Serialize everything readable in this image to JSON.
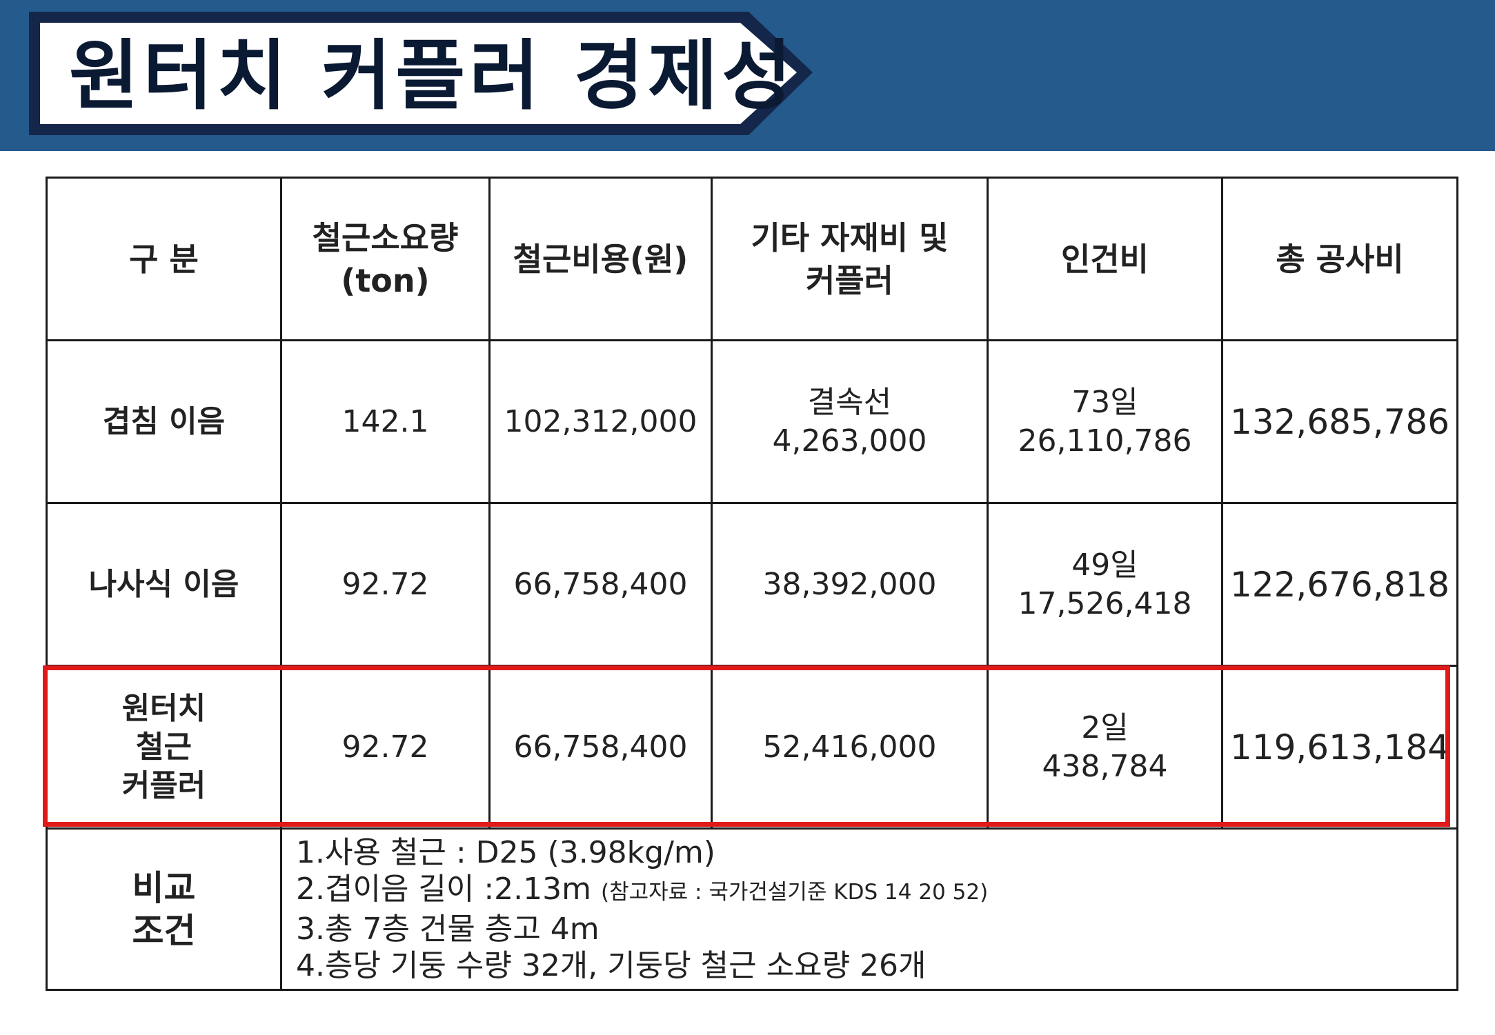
{
  "title": "원터치 커플러 경제성",
  "columns": {
    "category": "구 분",
    "rebar_qty": [
      "철근소요량",
      "(ton)"
    ],
    "rebar_cost": "철근비용(원)",
    "materials": [
      "기타 자재비 및",
      "커플러"
    ],
    "labor": "인건비",
    "total": "총 공사비"
  },
  "rows": [
    {
      "name": [
        "겹침 이음"
      ],
      "rebar_qty": "142.1",
      "rebar_cost": "102,312,000",
      "materials": [
        "결속선",
        "4,263,000"
      ],
      "labor": [
        "73일",
        "26,110,786"
      ],
      "total": "132,685,786"
    },
    {
      "name": [
        "나사식 이음"
      ],
      "rebar_qty": "92.72",
      "rebar_cost": "66,758,400",
      "materials": [
        "38,392,000"
      ],
      "labor": [
        "49일",
        "17,526,418"
      ],
      "total": "122,676,818"
    },
    {
      "name": [
        "원터치",
        "철근",
        "커플러"
      ],
      "rebar_qty": "92.72",
      "rebar_cost": "66,758,400",
      "materials": [
        "52,416,000"
      ],
      "labor": [
        "2일",
        "438,784"
      ],
      "total": "119,613,184"
    }
  ],
  "conditions": {
    "label": [
      "비교",
      "조건"
    ],
    "items": [
      {
        "main": "1.사용 철근 : D25 (3.98kg/m)",
        "note": ""
      },
      {
        "main": "2.겹이음 길이 :2.13m ",
        "note": "(참고자료 : 국가건설기준 KDS 14 20 52)"
      },
      {
        "main": "3.총 7층 건물 층고 4m",
        "note": ""
      },
      {
        "main": "4.층당 기둥 수량 32개, 기둥당 철근 소요량 26개",
        "note": ""
      }
    ]
  },
  "colors": {
    "header_band": "#245a8c",
    "title_frame": "#14264a",
    "highlight": "#e01919",
    "total_text": "#e01919"
  }
}
